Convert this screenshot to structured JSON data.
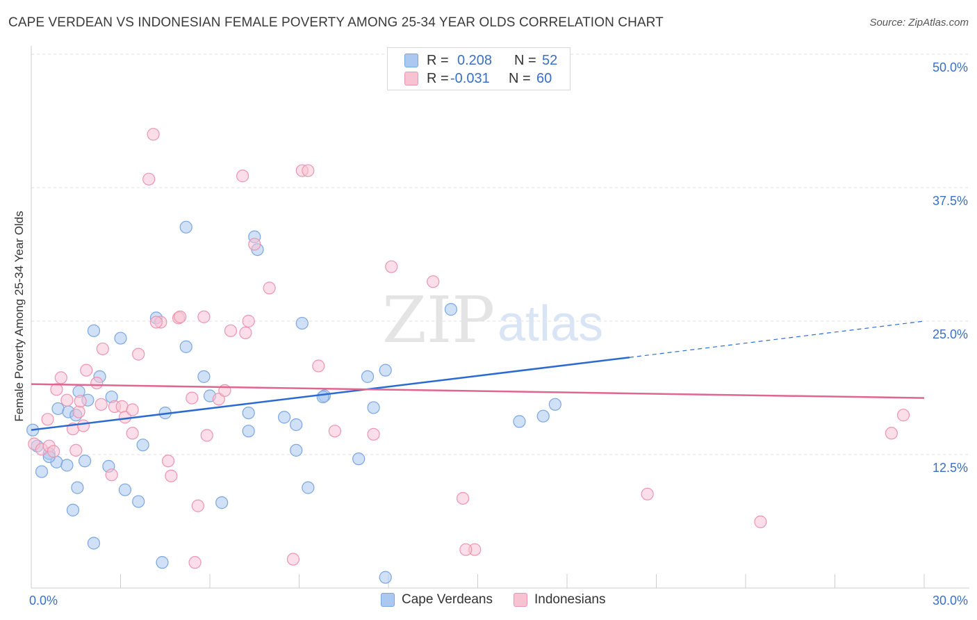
{
  "title": "CAPE VERDEAN VS INDONESIAN FEMALE POVERTY AMONG 25-34 YEAR OLDS CORRELATION CHART",
  "source": "Source: ZipAtlas.com",
  "watermark": {
    "zip": "ZIP",
    "atlas": "atlas"
  },
  "stat_legend": {
    "rows": [
      {
        "r_label": "R =",
        "r_value": "0.208",
        "n_label": "N =",
        "n_value": "52",
        "color": "#aac8f0",
        "border": "#7aa6e0"
      },
      {
        "r_label": "R =",
        "r_value": "-0.031",
        "n_label": "N =",
        "n_value": "60",
        "color": "#f7c3d3",
        "border": "#eb95b0"
      }
    ]
  },
  "legend": [
    {
      "label": "Cape Verdeans",
      "color": "#aac8f0",
      "border": "#7aa6e0"
    },
    {
      "label": "Indonesians",
      "color": "#f7c3d3",
      "border": "#eb95b0"
    }
  ],
  "chart_data": {
    "type": "scatter",
    "title": "CAPE VERDEAN VS INDONESIAN FEMALE POVERTY AMONG 25-34 YEAR OLDS CORRELATION CHART",
    "xlabel": "",
    "ylabel": "Female Poverty Among 25-34 Year Olds",
    "xlim": [
      0,
      30
    ],
    "ylim": [
      0,
      50
    ],
    "x_tick_labels": [
      {
        "value": 0,
        "label": "0.0%"
      },
      {
        "value": 30,
        "label": "30.0%"
      }
    ],
    "y_tick_labels": [
      {
        "value": 12.5,
        "label": "12.5%"
      },
      {
        "value": 25,
        "label": "25.0%"
      },
      {
        "value": 37.5,
        "label": "37.5%"
      },
      {
        "value": 50,
        "label": "50.0%"
      }
    ],
    "grid": true,
    "legend_position": "bottom-center",
    "series": [
      {
        "name": "Cape Verdeans",
        "color": "#aac8f0",
        "stroke": "#7aa6e0",
        "line_color": "#2b6bd1",
        "trend": {
          "x0": 0,
          "y0": 14.8,
          "x1": 20.1,
          "y1": 21.6,
          "dashed_to_x": 30,
          "dashed_to_y": 25.0
        },
        "points": [
          [
            0.05,
            14.8
          ],
          [
            0.2,
            13.3
          ],
          [
            0.35,
            10.9
          ],
          [
            0.6,
            12.6
          ],
          [
            0.85,
            11.8
          ],
          [
            0.9,
            16.8
          ],
          [
            0.6,
            12.3
          ],
          [
            1.4,
            7.3
          ],
          [
            1.2,
            11.5
          ],
          [
            1.55,
            9.4
          ],
          [
            1.6,
            18.4
          ],
          [
            1.25,
            16.5
          ],
          [
            1.5,
            16.2
          ],
          [
            1.9,
            17.6
          ],
          [
            1.8,
            11.9
          ],
          [
            2.1,
            4.2
          ],
          [
            2.1,
            24.1
          ],
          [
            2.3,
            19.8
          ],
          [
            2.7,
            17.9
          ],
          [
            3.0,
            23.4
          ],
          [
            2.6,
            11.4
          ],
          [
            3.15,
            9.2
          ],
          [
            3.6,
            8.1
          ],
          [
            3.75,
            13.4
          ],
          [
            4.2,
            25.3
          ],
          [
            4.5,
            16.4
          ],
          [
            4.4,
            2.4
          ],
          [
            5.2,
            22.6
          ],
          [
            5.2,
            33.8
          ],
          [
            5.8,
            19.8
          ],
          [
            6.0,
            18.0
          ],
          [
            6.4,
            8.0
          ],
          [
            7.3,
            14.7
          ],
          [
            7.3,
            16.4
          ],
          [
            7.6,
            31.7
          ],
          [
            7.5,
            32.9
          ],
          [
            8.5,
            16.0
          ],
          [
            8.9,
            15.3
          ],
          [
            8.9,
            12.9
          ],
          [
            9.3,
            9.4
          ],
          [
            9.85,
            18.0
          ],
          [
            9.1,
            24.8
          ],
          [
            9.8,
            17.9
          ],
          [
            11.0,
            12.1
          ],
          [
            11.3,
            19.8
          ],
          [
            11.5,
            16.9
          ],
          [
            11.9,
            20.4
          ],
          [
            11.9,
            1.0
          ],
          [
            14.1,
            26.1
          ],
          [
            16.4,
            15.6
          ],
          [
            17.2,
            16.1
          ],
          [
            17.6,
            17.2
          ]
        ]
      },
      {
        "name": "Indonesians",
        "color": "#f7c3d3",
        "stroke": "#eb95b0",
        "line_color": "#e06590",
        "trend": {
          "x0": 0,
          "y0": 19.1,
          "x1": 30,
          "y1": 17.8
        },
        "points": [
          [
            0.1,
            13.5
          ],
          [
            0.35,
            13.0
          ],
          [
            0.55,
            15.8
          ],
          [
            0.6,
            13.3
          ],
          [
            0.75,
            12.8
          ],
          [
            0.85,
            18.6
          ],
          [
            1.0,
            19.7
          ],
          [
            1.2,
            17.6
          ],
          [
            1.4,
            14.9
          ],
          [
            1.5,
            12.9
          ],
          [
            1.6,
            16.5
          ],
          [
            1.65,
            17.5
          ],
          [
            1.75,
            15.2
          ],
          [
            1.85,
            20.4
          ],
          [
            2.2,
            19.2
          ],
          [
            2.35,
            17.2
          ],
          [
            2.4,
            22.4
          ],
          [
            2.8,
            17.0
          ],
          [
            2.7,
            10.6
          ],
          [
            3.05,
            17.0
          ],
          [
            3.15,
            16.0
          ],
          [
            3.4,
            16.7
          ],
          [
            3.4,
            14.5
          ],
          [
            3.6,
            21.9
          ],
          [
            3.95,
            38.3
          ],
          [
            4.1,
            42.5
          ],
          [
            4.35,
            24.9
          ],
          [
            4.6,
            11.9
          ],
          [
            4.7,
            10.5
          ],
          [
            4.95,
            25.3
          ],
          [
            5.0,
            25.4
          ],
          [
            5.4,
            17.8
          ],
          [
            5.5,
            2.4
          ],
          [
            5.6,
            7.7
          ],
          [
            5.8,
            25.4
          ],
          [
            5.9,
            14.3
          ],
          [
            6.3,
            17.7
          ],
          [
            6.5,
            18.5
          ],
          [
            6.7,
            24.1
          ],
          [
            7.1,
            38.6
          ],
          [
            7.2,
            23.9
          ],
          [
            7.3,
            25.0
          ],
          [
            7.5,
            32.2
          ],
          [
            8.0,
            28.1
          ],
          [
            8.8,
            2.7
          ],
          [
            9.1,
            39.1
          ],
          [
            9.3,
            39.1
          ],
          [
            9.65,
            20.8
          ],
          [
            10.2,
            14.7
          ],
          [
            12.1,
            30.1
          ],
          [
            13.5,
            28.7
          ],
          [
            14.5,
            8.4
          ],
          [
            14.9,
            3.6
          ],
          [
            14.6,
            3.6
          ],
          [
            20.7,
            8.8
          ],
          [
            24.5,
            6.2
          ],
          [
            28.9,
            14.5
          ],
          [
            29.3,
            16.2
          ],
          [
            4.2,
            24.9
          ],
          [
            11.5,
            14.4
          ]
        ]
      }
    ]
  }
}
